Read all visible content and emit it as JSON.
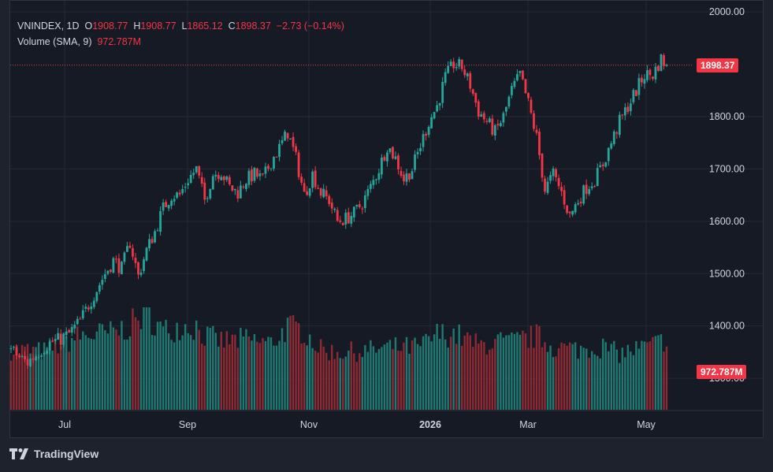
{
  "legend": {
    "symbol": "VNINDEX, 1D",
    "o_label": "O",
    "open": "1908.77",
    "h_label": "H",
    "high": "1908.77",
    "l_label": "L",
    "low": "1865.12",
    "c_label": "C",
    "close": "1898.37",
    "change": "−2.73 (−0.14%)",
    "volume_label": "Volume (SMA, 9)",
    "volume_value": "972.787M"
  },
  "price_badge": "1898.37",
  "volume_badge": "972.787M",
  "brand": "TradingView",
  "colors": {
    "up": "#26a69a",
    "down": "#f23645",
    "up_vol": "#1f7a73",
    "down_vol": "#8f2a33",
    "grid": "#252936",
    "text": "#d1d4dc"
  },
  "chart_data": {
    "type": "candlestick",
    "title": "VNINDEX, 1D",
    "y_ticks": [
      "2000.00",
      "1800.00",
      "1700.00",
      "1600.00",
      "1500.00",
      "1400.00",
      "1300.00"
    ],
    "ylim": [
      1300,
      2000
    ],
    "x_ticks": [
      "Jul",
      "Sep",
      "Nov",
      "2026",
      "Mar",
      "May"
    ],
    "last_close": 1898.37,
    "close_series": [
      [
        0,
        1355
      ],
      [
        3,
        1340
      ],
      [
        6,
        1330
      ],
      [
        9,
        1345
      ],
      [
        12,
        1360
      ],
      [
        15,
        1370
      ],
      [
        18,
        1375
      ],
      [
        21,
        1385
      ],
      [
        25,
        1410
      ],
      [
        28,
        1440
      ],
      [
        31,
        1470
      ],
      [
        34,
        1500
      ],
      [
        37,
        1525
      ],
      [
        40,
        1510
      ],
      [
        43,
        1560
      ],
      [
        46,
        1495
      ],
      [
        49,
        1545
      ],
      [
        52,
        1580
      ],
      [
        55,
        1625
      ],
      [
        58,
        1650
      ],
      [
        61,
        1650
      ],
      [
        64,
        1680
      ],
      [
        67,
        1700
      ],
      [
        70,
        1640
      ],
      [
        73,
        1690
      ],
      [
        76,
        1695
      ],
      [
        79,
        1665
      ],
      [
        82,
        1655
      ],
      [
        85,
        1680
      ],
      [
        88,
        1690
      ],
      [
        91,
        1680
      ],
      [
        94,
        1715
      ],
      [
        97,
        1740
      ],
      [
        100,
        1770
      ],
      [
        103,
        1720
      ],
      [
        106,
        1650
      ],
      [
        109,
        1690
      ],
      [
        112,
        1655
      ],
      [
        115,
        1640
      ],
      [
        118,
        1600
      ],
      [
        121,
        1605
      ],
      [
        124,
        1615
      ],
      [
        127,
        1635
      ],
      [
        130,
        1665
      ],
      [
        133,
        1700
      ],
      [
        136,
        1745
      ],
      [
        139,
        1720
      ],
      [
        142,
        1680
      ],
      [
        145,
        1700
      ],
      [
        148,
        1745
      ],
      [
        151,
        1790
      ],
      [
        154,
        1820
      ],
      [
        157,
        1875
      ],
      [
        160,
        1900
      ],
      [
        163,
        1895
      ],
      [
        166,
        1860
      ],
      [
        169,
        1810
      ],
      [
        172,
        1790
      ],
      [
        175,
        1770
      ],
      [
        178,
        1800
      ],
      [
        181,
        1850
      ],
      [
        184,
        1880
      ],
      [
        187,
        1825
      ],
      [
        190,
        1760
      ],
      [
        193,
        1660
      ],
      [
        196,
        1690
      ],
      [
        199,
        1655
      ],
      [
        202,
        1610
      ],
      [
        205,
        1640
      ],
      [
        208,
        1665
      ],
      [
        211,
        1680
      ],
      [
        214,
        1710
      ],
      [
        217,
        1750
      ],
      [
        220,
        1790
      ],
      [
        223,
        1820
      ],
      [
        226,
        1850
      ],
      [
        229,
        1880
      ],
      [
        232,
        1880
      ],
      [
        235,
        1910
      ],
      [
        237,
        1898.37
      ]
    ],
    "volume_series": [
      [
        0,
        820
      ],
      [
        12,
        800
      ],
      [
        25,
        1010
      ],
      [
        37,
        1050
      ],
      [
        43,
        1150
      ],
      [
        49,
        1330
      ],
      [
        55,
        1070
      ],
      [
        61,
        1150
      ],
      [
        67,
        1140
      ],
      [
        70,
        1010
      ],
      [
        76,
        940
      ],
      [
        85,
        960
      ],
      [
        94,
        910
      ],
      [
        100,
        1130
      ],
      [
        106,
        1080
      ],
      [
        112,
        820
      ],
      [
        118,
        790
      ],
      [
        127,
        800
      ],
      [
        136,
        850
      ],
      [
        148,
        860
      ],
      [
        154,
        1030
      ],
      [
        160,
        1040
      ],
      [
        163,
        990
      ],
      [
        169,
        880
      ],
      [
        175,
        930
      ],
      [
        181,
        920
      ],
      [
        187,
        980
      ],
      [
        190,
        1010
      ],
      [
        196,
        860
      ],
      [
        205,
        830
      ],
      [
        214,
        860
      ],
      [
        220,
        770
      ],
      [
        226,
        830
      ],
      [
        232,
        880
      ],
      [
        237,
        972.787
      ]
    ]
  }
}
